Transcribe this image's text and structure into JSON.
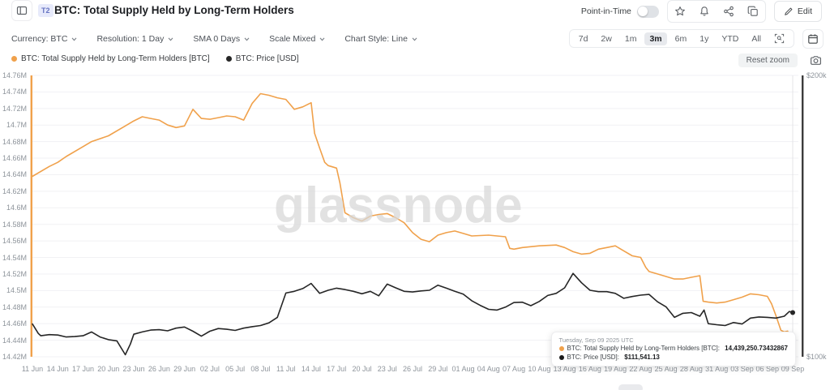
{
  "header": {
    "badge": "T2",
    "title": "BTC: Total Supply Held by Long-Term Holders",
    "point_in_time_label": "Point-in-Time",
    "point_in_time_state": "off",
    "edit_label": "Edit",
    "action_icons": [
      "favorite-icon",
      "alerts-icon",
      "share-icon",
      "duplicate-icon"
    ]
  },
  "toolbar": {
    "dropdowns": [
      {
        "name": "currency-dropdown",
        "label": "Currency: BTC"
      },
      {
        "name": "resolution-dropdown",
        "label": "Resolution: 1 Day"
      },
      {
        "name": "sma-dropdown",
        "label": "SMA 0 Days"
      },
      {
        "name": "scale-dropdown",
        "label": "Scale Mixed"
      },
      {
        "name": "chart-style-dropdown",
        "label": "Chart Style: Line"
      }
    ],
    "ranges": [
      "7d",
      "2w",
      "1m",
      "3m",
      "6m",
      "1y",
      "YTD",
      "All"
    ],
    "active_range": "3m"
  },
  "legend": [
    {
      "label": "BTC: Total Supply Held by Long-Term Holders [BTC]",
      "color": "#F0A14B"
    },
    {
      "label": "BTC: Price [USD]",
      "color": "#262626"
    }
  ],
  "reset_zoom_label": "Reset zoom",
  "watermark": "glassnode",
  "tooltip": {
    "date": "Tuesday, Sep 09 2025 UTC",
    "rows": [
      {
        "color": "#F0A14B",
        "label": "BTC: Total Supply Held by Long-Term Holders [BTC]:",
        "value": "14,439,250.73432867"
      },
      {
        "color": "#1a1a1a",
        "label": "BTC: Price [USD]:",
        "value": "$111,541.13"
      }
    ]
  },
  "chart_data": {
    "type": "line",
    "title": "BTC: Total Supply Held by Long-Term Holders",
    "x_unit": "days since 11 Jun 2025",
    "x_domain_days": [
      0,
      90
    ],
    "x_tick_labels": [
      "11 Jun",
      "14 Jun",
      "17 Jun",
      "20 Jun",
      "23 Jun",
      "26 Jun",
      "29 Jun",
      "02 Jul",
      "05 Jul",
      "08 Jul",
      "11 Jul",
      "14 Jul",
      "17 Jul",
      "20 Jul",
      "23 Jul",
      "26 Jul",
      "29 Jul",
      "01 Aug",
      "04 Aug",
      "07 Aug",
      "10 Aug",
      "13 Aug",
      "16 Aug",
      "19 Aug",
      "22 Aug",
      "25 Aug",
      "28 Aug",
      "31 Aug",
      "03 Sep",
      "06 Sep",
      "09 Sep"
    ],
    "grid": "horizontal",
    "legend_position": "top-left",
    "y_left": {
      "scale": "linear",
      "unit": "M BTC",
      "min": 14.42,
      "max": 14.76,
      "tick_labels": [
        "14.76M",
        "14.74M",
        "14.72M",
        "14.7M",
        "14.68M",
        "14.66M",
        "14.64M",
        "14.62M",
        "14.6M",
        "14.58M",
        "14.56M",
        "14.54M",
        "14.52M",
        "14.5M",
        "14.48M",
        "14.46M",
        "14.44M",
        "14.42M"
      ]
    },
    "y_right": {
      "scale": "log",
      "unit": "USD (thousands)",
      "min_k": 100,
      "max_k": 200,
      "tick_labels": [
        "$200k",
        "$100k"
      ]
    },
    "series": [
      {
        "name": "BTC: Total Supply Held by Long-Term Holders [BTC]",
        "color": "#F0A14B",
        "axis": "left",
        "last_value": "14,439,250.73432867",
        "points": [
          [
            0,
            14.638
          ],
          [
            2,
            14.65
          ],
          [
            3,
            14.655
          ],
          [
            4,
            14.662
          ],
          [
            6,
            14.674
          ],
          [
            7,
            14.68
          ],
          [
            9,
            14.687
          ],
          [
            11,
            14.699
          ],
          [
            12,
            14.705
          ],
          [
            13,
            14.71
          ],
          [
            14,
            14.708
          ],
          [
            15,
            14.706
          ],
          [
            16,
            14.7
          ],
          [
            17,
            14.697
          ],
          [
            18,
            14.699
          ],
          [
            19,
            14.719
          ],
          [
            20,
            14.708
          ],
          [
            21,
            14.707
          ],
          [
            22,
            14.709
          ],
          [
            23,
            14.711
          ],
          [
            24,
            14.71
          ],
          [
            25,
            14.706
          ],
          [
            26,
            14.726
          ],
          [
            27,
            14.738
          ],
          [
            28,
            14.736
          ],
          [
            29,
            14.733
          ],
          [
            30,
            14.731
          ],
          [
            31,
            14.719
          ],
          [
            32,
            14.722
          ],
          [
            33,
            14.727
          ],
          [
            33.4,
            14.69
          ],
          [
            34,
            14.672
          ],
          [
            34.6,
            14.655
          ],
          [
            35,
            14.651
          ],
          [
            36,
            14.648
          ],
          [
            36.4,
            14.63
          ],
          [
            37,
            14.594
          ],
          [
            38,
            14.588
          ],
          [
            39,
            14.584
          ],
          [
            40,
            14.59
          ],
          [
            41,
            14.592
          ],
          [
            42,
            14.593
          ],
          [
            43,
            14.588
          ],
          [
            44,
            14.582
          ],
          [
            45,
            14.57
          ],
          [
            46,
            14.562
          ],
          [
            47,
            14.559
          ],
          [
            48,
            14.567
          ],
          [
            49,
            14.57
          ],
          [
            50,
            14.572
          ],
          [
            51,
            14.569
          ],
          [
            52,
            14.566
          ],
          [
            54,
            14.567
          ],
          [
            55,
            14.566
          ],
          [
            56,
            14.565
          ],
          [
            56.5,
            14.551
          ],
          [
            57,
            14.55
          ],
          [
            58,
            14.552
          ],
          [
            60,
            14.554
          ],
          [
            62,
            14.555
          ],
          [
            63,
            14.552
          ],
          [
            64,
            14.547
          ],
          [
            65,
            14.544
          ],
          [
            66,
            14.545
          ],
          [
            67,
            14.55
          ],
          [
            68,
            14.552
          ],
          [
            69,
            14.554
          ],
          [
            70,
            14.548
          ],
          [
            71,
            14.542
          ],
          [
            72,
            14.54
          ],
          [
            72.6,
            14.528
          ],
          [
            73,
            14.523
          ],
          [
            74,
            14.52
          ],
          [
            75,
            14.517
          ],
          [
            76,
            14.514
          ],
          [
            77,
            14.514
          ],
          [
            78,
            14.516
          ],
          [
            79,
            14.518
          ],
          [
            79.4,
            14.487
          ],
          [
            80,
            14.486
          ],
          [
            81,
            14.485
          ],
          [
            82,
            14.486
          ],
          [
            83,
            14.489
          ],
          [
            84,
            14.492
          ],
          [
            85,
            14.496
          ],
          [
            86,
            14.495
          ],
          [
            87,
            14.493
          ],
          [
            87.5,
            14.484
          ],
          [
            88,
            14.47
          ],
          [
            88.6,
            14.452
          ],
          [
            89,
            14.45
          ],
          [
            89.4,
            14.451
          ],
          [
            90,
            14.439
          ]
        ]
      },
      {
        "name": "BTC: Price [USD]",
        "color": "#262626",
        "axis": "right",
        "last_value": "$111,541.13",
        "points": [
          [
            0,
            108.4
          ],
          [
            0.7,
            105.9
          ],
          [
            1,
            105.3
          ],
          [
            2,
            105.6
          ],
          [
            3,
            105.5
          ],
          [
            4,
            105.0
          ],
          [
            5,
            105.1
          ],
          [
            6,
            105.3
          ],
          [
            7,
            106.3
          ],
          [
            8,
            105.0
          ],
          [
            9,
            104.3
          ],
          [
            10,
            104.0
          ],
          [
            11,
            100.5
          ],
          [
            11.6,
            103.2
          ],
          [
            12,
            105.7
          ],
          [
            13,
            106.3
          ],
          [
            14,
            106.8
          ],
          [
            15,
            106.9
          ],
          [
            16,
            106.6
          ],
          [
            17,
            107.3
          ],
          [
            18,
            107.6
          ],
          [
            19,
            106.5
          ],
          [
            20,
            105.2
          ],
          [
            21,
            106.5
          ],
          [
            22,
            107.2
          ],
          [
            23,
            107.0
          ],
          [
            24,
            106.7
          ],
          [
            25,
            107.3
          ],
          [
            26,
            107.7
          ],
          [
            27,
            108.0
          ],
          [
            28,
            108.7
          ],
          [
            29,
            110.2
          ],
          [
            30,
            117.0
          ],
          [
            31,
            117.5
          ],
          [
            32,
            118.3
          ],
          [
            33,
            119.8
          ],
          [
            34,
            116.9
          ],
          [
            35,
            117.8
          ],
          [
            36,
            118.4
          ],
          [
            37,
            118.0
          ],
          [
            38,
            117.5
          ],
          [
            39,
            116.8
          ],
          [
            40,
            117.5
          ],
          [
            41,
            116.2
          ],
          [
            42,
            119.6
          ],
          [
            43,
            118.5
          ],
          [
            44,
            117.5
          ],
          [
            45,
            117.3
          ],
          [
            46,
            117.6
          ],
          [
            47,
            117.8
          ],
          [
            48,
            119.3
          ],
          [
            49,
            118.4
          ],
          [
            50,
            117.5
          ],
          [
            51,
            116.7
          ],
          [
            52,
            114.8
          ],
          [
            53,
            113.5
          ],
          [
            54,
            112.4
          ],
          [
            55,
            112.2
          ],
          [
            56,
            113.0
          ],
          [
            57,
            114.3
          ],
          [
            58,
            114.4
          ],
          [
            59,
            113.4
          ],
          [
            60,
            114.6
          ],
          [
            61,
            116.3
          ],
          [
            62,
            116.9
          ],
          [
            63,
            118.5
          ],
          [
            64,
            122.8
          ],
          [
            65,
            120.0
          ],
          [
            66,
            117.8
          ],
          [
            67,
            117.4
          ],
          [
            68,
            117.4
          ],
          [
            69,
            116.9
          ],
          [
            70,
            115.5
          ],
          [
            71,
            116.0
          ],
          [
            72,
            116.4
          ],
          [
            73,
            116.6
          ],
          [
            74,
            114.5
          ],
          [
            75,
            113.1
          ],
          [
            76,
            110.2
          ],
          [
            77,
            111.3
          ],
          [
            78,
            111.5
          ],
          [
            79,
            110.5
          ],
          [
            79.5,
            112.2
          ],
          [
            80,
            108.5
          ],
          [
            81,
            108.2
          ],
          [
            82,
            108.0
          ],
          [
            83,
            108.8
          ],
          [
            84,
            108.4
          ],
          [
            85,
            110.0
          ],
          [
            86,
            110.3
          ],
          [
            87,
            110.2
          ],
          [
            88,
            110.0
          ],
          [
            89,
            110.5
          ],
          [
            89.6,
            111.8
          ],
          [
            90,
            111.5
          ]
        ]
      }
    ]
  }
}
